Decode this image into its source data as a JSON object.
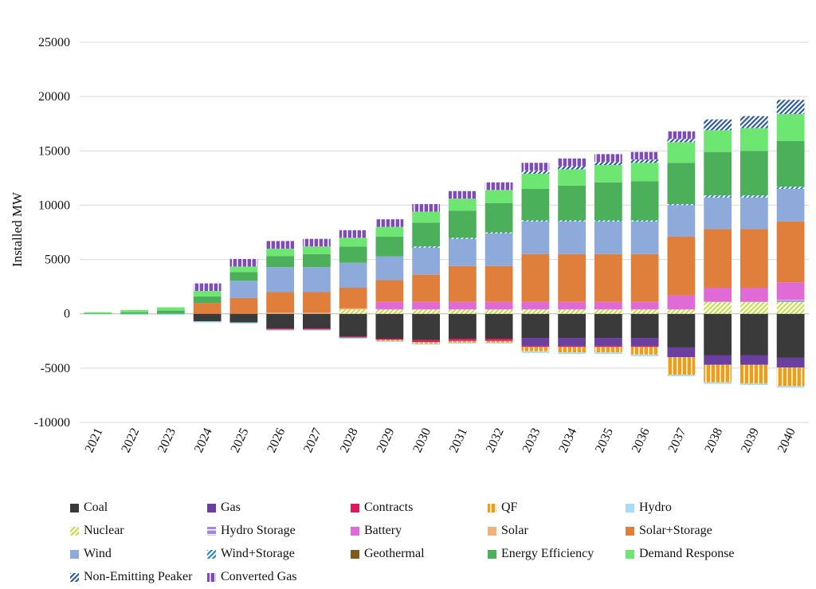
{
  "chart_data": {
    "type": "bar",
    "stacked": true,
    "ylabel": "Installed MW",
    "xlabel": "",
    "ylim": [
      -10000,
      25000
    ],
    "yticks": [
      25000,
      20000,
      15000,
      10000,
      5000,
      0,
      -5000,
      -10000
    ],
    "grid": true,
    "legend_position": "bottom",
    "categories": [
      "2021",
      "2022",
      "2023",
      "2024",
      "2025",
      "2026",
      "2027",
      "2028",
      "2029",
      "2030",
      "2031",
      "2032",
      "2033",
      "2034",
      "2035",
      "2036",
      "2037",
      "2038",
      "2039",
      "2040"
    ],
    "series": [
      {
        "name": "Coal",
        "color": "#3a3a3a",
        "pattern": "solid",
        "values": [
          0,
          0,
          0,
          -700,
          -800,
          -1350,
          -1350,
          -2100,
          -2300,
          -2400,
          -2300,
          -2300,
          -2250,
          -2250,
          -2250,
          -2250,
          -3100,
          -3800,
          -3800,
          -4050
        ]
      },
      {
        "name": "Gas",
        "color": "#6b3fa0",
        "pattern": "solid",
        "values": [
          0,
          0,
          0,
          0,
          0,
          0,
          0,
          0,
          0,
          0,
          0,
          0,
          -700,
          -700,
          -700,
          -700,
          -900,
          -900,
          -900,
          -900
        ]
      },
      {
        "name": "Contracts",
        "color": "#d81b60",
        "pattern": "solid",
        "values": [
          0,
          0,
          0,
          0,
          0,
          -100,
          -100,
          -100,
          -100,
          -200,
          -200,
          -200,
          -100,
          -100,
          -100,
          -100,
          0,
          0,
          0,
          0
        ]
      },
      {
        "name": "QF",
        "color": "#f39c12",
        "pattern": "vstripes",
        "values": [
          0,
          0,
          0,
          0,
          0,
          0,
          0,
          0,
          -100,
          -150,
          -150,
          -150,
          -400,
          -500,
          -500,
          -700,
          -1600,
          -1600,
          -1700,
          -1700
        ]
      },
      {
        "name": "Hydro",
        "color": "#a8ddf5",
        "pattern": "solid",
        "values": [
          -50,
          -100,
          -100,
          -100,
          -100,
          -100,
          -100,
          -100,
          -100,
          -100,
          -100,
          -100,
          -150,
          -150,
          -150,
          -150,
          -150,
          -150,
          -150,
          -150
        ]
      },
      {
        "name": "Nuclear",
        "color": "#c6e04a",
        "pattern": "diag",
        "values": [
          0,
          0,
          0,
          0,
          0,
          0,
          0,
          400,
          400,
          400,
          400,
          400,
          400,
          400,
          400,
          400,
          400,
          1100,
          1100,
          1100
        ]
      },
      {
        "name": "Hydro Storage",
        "color": "#a08ae0",
        "pattern": "hstripes",
        "values": [
          0,
          0,
          0,
          0,
          0,
          0,
          0,
          0,
          0,
          0,
          0,
          0,
          0,
          0,
          0,
          0,
          0,
          0,
          0,
          200
        ]
      },
      {
        "name": "Battery",
        "color": "#e06ad6",
        "pattern": "solid",
        "values": [
          0,
          0,
          0,
          0,
          0,
          0,
          0,
          0,
          700,
          700,
          700,
          700,
          700,
          700,
          700,
          700,
          1300,
          1300,
          1300,
          1600
        ]
      },
      {
        "name": "Solar",
        "color": "#f0b27a",
        "pattern": "solid",
        "values": [
          0,
          0,
          0,
          0,
          0,
          100,
          100,
          100,
          0,
          0,
          0,
          0,
          0,
          0,
          0,
          0,
          0,
          0,
          0,
          0
        ]
      },
      {
        "name": "Solar+Storage",
        "color": "#e07e3c",
        "pattern": "solid",
        "values": [
          0,
          0,
          0,
          1000,
          1450,
          1900,
          1900,
          1900,
          2000,
          2500,
          3300,
          3300,
          4400,
          4400,
          4400,
          4400,
          5400,
          5400,
          5400,
          5600
        ]
      },
      {
        "name": "Wind",
        "color": "#8eaadb",
        "pattern": "solid",
        "values": [
          0,
          0,
          0,
          0,
          1600,
          2300,
          2300,
          2300,
          2200,
          2500,
          2500,
          3000,
          3000,
          3000,
          3000,
          3000,
          2900,
          2900,
          2900,
          3000
        ]
      },
      {
        "name": "Wind+Storage",
        "color": "#2e86c1",
        "pattern": "diag",
        "values": [
          0,
          0,
          0,
          0,
          0,
          0,
          0,
          0,
          0,
          100,
          100,
          100,
          100,
          100,
          100,
          100,
          100,
          200,
          200,
          200
        ]
      },
      {
        "name": "Geothermal",
        "color": "#7b5c1e",
        "pattern": "solid",
        "values": [
          0,
          0,
          0,
          0,
          0,
          0,
          0,
          0,
          0,
          0,
          0,
          0,
          0,
          0,
          0,
          0,
          0,
          0,
          0,
          0
        ]
      },
      {
        "name": "Energy Efficiency",
        "color": "#4caf5a",
        "pattern": "solid",
        "values": [
          50,
          150,
          300,
          600,
          800,
          1000,
          1200,
          1500,
          1800,
          2200,
          2500,
          2700,
          2900,
          3200,
          3500,
          3600,
          3800,
          4000,
          4100,
          4200
        ]
      },
      {
        "name": "Demand Response",
        "color": "#6ee672",
        "pattern": "solid",
        "values": [
          100,
          200,
          300,
          500,
          500,
          700,
          700,
          800,
          900,
          1000,
          1100,
          1200,
          1400,
          1500,
          1600,
          1700,
          1900,
          2000,
          2100,
          2500
        ]
      },
      {
        "name": "Non-Emitting Peaker",
        "color": "#2e5c9e",
        "pattern": "diag",
        "values": [
          0,
          0,
          0,
          0,
          0,
          0,
          0,
          0,
          0,
          0,
          0,
          0,
          300,
          300,
          300,
          300,
          300,
          1000,
          1100,
          1300
        ]
      },
      {
        "name": "Converted Gas",
        "color": "#7e4bb8",
        "pattern": "vstripes",
        "values": [
          0,
          0,
          0,
          700,
          700,
          700,
          700,
          700,
          700,
          700,
          700,
          700,
          700,
          700,
          700,
          700,
          700,
          0,
          0,
          0
        ]
      }
    ]
  }
}
